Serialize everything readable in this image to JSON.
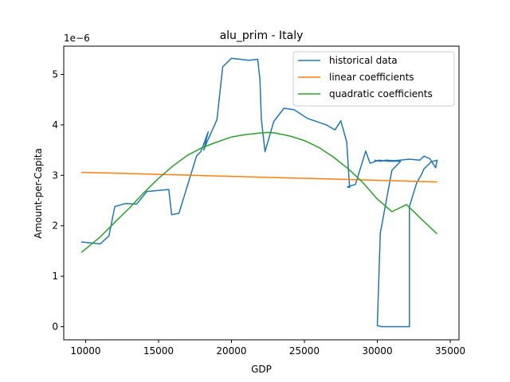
{
  "chart_data": {
    "type": "line",
    "title": "alu_prim - Italy",
    "xlabel": "GDP",
    "ylabel": "Amount-per-Capita",
    "y_scale_label": "1e−6",
    "xlim": [
      8500,
      35600
    ],
    "ylim": [
      -0.26,
      5.56
    ],
    "x_ticks": [
      10000,
      15000,
      20000,
      25000,
      30000,
      35000
    ],
    "x_tick_labels": [
      "10000",
      "15000",
      "20000",
      "25000",
      "30000",
      "35000"
    ],
    "y_ticks": [
      0,
      1,
      2,
      3,
      4,
      5
    ],
    "y_tick_labels": [
      "0",
      "1",
      "2",
      "3",
      "4",
      "5"
    ],
    "grid": false,
    "legend_position": "upper right",
    "series": [
      {
        "name": "historical data",
        "color": "#1f77b4",
        "x": [
          9700,
          11000,
          11600,
          12000,
          12700,
          13500,
          14200,
          15700,
          15900,
          16400,
          17600,
          17900,
          18100,
          18400,
          18100,
          18300,
          19000,
          19400,
          20000,
          21200,
          21800,
          21950,
          22050,
          22300,
          22900,
          23600,
          24300,
          25200,
          26500,
          27100,
          27500,
          27900,
          28000,
          28100,
          27950,
          28500,
          29200,
          29500,
          30100,
          30800,
          31600,
          31000,
          30200,
          30000,
          30300,
          31200,
          32200,
          32200,
          32700,
          33000,
          33200,
          33700,
          34100,
          34000,
          33600,
          33200,
          32900,
          32200,
          31200,
          30600,
          30200,
          29800
        ],
        "y": [
          1.68,
          1.64,
          1.8,
          2.38,
          2.44,
          2.43,
          2.68,
          2.72,
          2.22,
          2.25,
          3.38,
          3.47,
          3.62,
          3.86,
          3.5,
          3.65,
          4.1,
          5.15,
          5.32,
          5.28,
          5.3,
          4.9,
          4.1,
          3.47,
          4.07,
          4.33,
          4.3,
          4.13,
          4.0,
          3.9,
          4.08,
          3.66,
          3.2,
          2.76,
          2.77,
          2.82,
          3.48,
          3.24,
          3.3,
          3.28,
          3.28,
          3.1,
          1.85,
          0.02,
          0.0,
          0.0,
          0.0,
          2.38,
          2.85,
          3.0,
          3.13,
          3.27,
          3.3,
          3.15,
          3.33,
          3.38,
          3.3,
          3.32,
          3.29,
          3.3,
          3.28,
          3.3
        ]
      },
      {
        "name": "linear coefficients",
        "color": "#ff7f0e",
        "x": [
          9700,
          34100
        ],
        "y": [
          3.06,
          2.87
        ]
      },
      {
        "name": "quadratic coefficients",
        "color": "#2ca02c",
        "x": [
          9700,
          11000,
          12000,
          13000,
          14000,
          15000,
          16000,
          17000,
          18000,
          19000,
          20000,
          21000,
          22000,
          22500,
          23000,
          24000,
          25000,
          26000,
          27000,
          28000,
          29000,
          30000,
          31000,
          32000,
          33000,
          34100
        ],
        "y": [
          1.47,
          1.78,
          2.07,
          2.35,
          2.66,
          2.94,
          3.19,
          3.4,
          3.55,
          3.66,
          3.76,
          3.81,
          3.84,
          3.85,
          3.84,
          3.78,
          3.69,
          3.55,
          3.36,
          3.13,
          2.86,
          2.53,
          2.28,
          2.42,
          2.14,
          1.84
        ]
      }
    ]
  }
}
